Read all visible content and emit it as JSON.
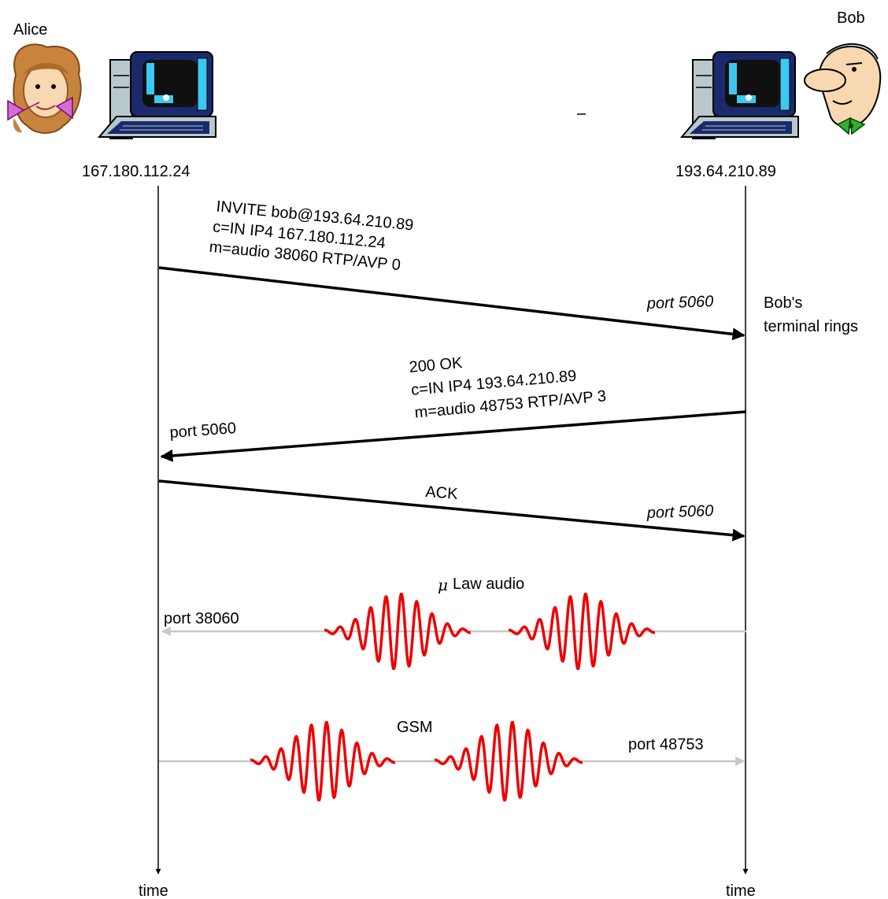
{
  "parties": {
    "alice": {
      "name": "Alice",
      "ip": "167.180.112.24",
      "time_label": "time"
    },
    "bob": {
      "name": "Bob",
      "ip": "193.64.210.89",
      "time_label": "time"
    }
  },
  "messages": {
    "invite": {
      "lines": [
        "INVITE bob@193.64.210.89",
        "c=IN IP4 167.180.112.24",
        "m=audio 38060 RTP/AVP 0"
      ],
      "port": "port 5060"
    },
    "ok": {
      "lines": [
        "200 OK",
        "c=IN IP4 193.64.210.89",
        "m=audio 48753 RTP/AVP 3"
      ],
      "port": "port 5060"
    },
    "ack": {
      "label": "ACK",
      "port": "port 5060"
    }
  },
  "bob_status": [
    "Bob's",
    "terminal rings"
  ],
  "streams": {
    "mulaw": {
      "symbol": "μ",
      "label": "Law audio",
      "port": "port 38060"
    },
    "gsm": {
      "label": "GSM",
      "port": "port 48753"
    }
  },
  "colors": {
    "signal": "#000000",
    "media_arrow": "#c8c8c8",
    "waveform": "#ee0000",
    "monitor_frame": "#1a2a6c",
    "monitor_screen": "#101010",
    "monitor_highlight": "#3cc8f0",
    "case": "#b8c8cc"
  },
  "icons": [
    "alice-face-icon",
    "alice-computer-icon",
    "bob-computer-icon",
    "bob-face-icon"
  ]
}
